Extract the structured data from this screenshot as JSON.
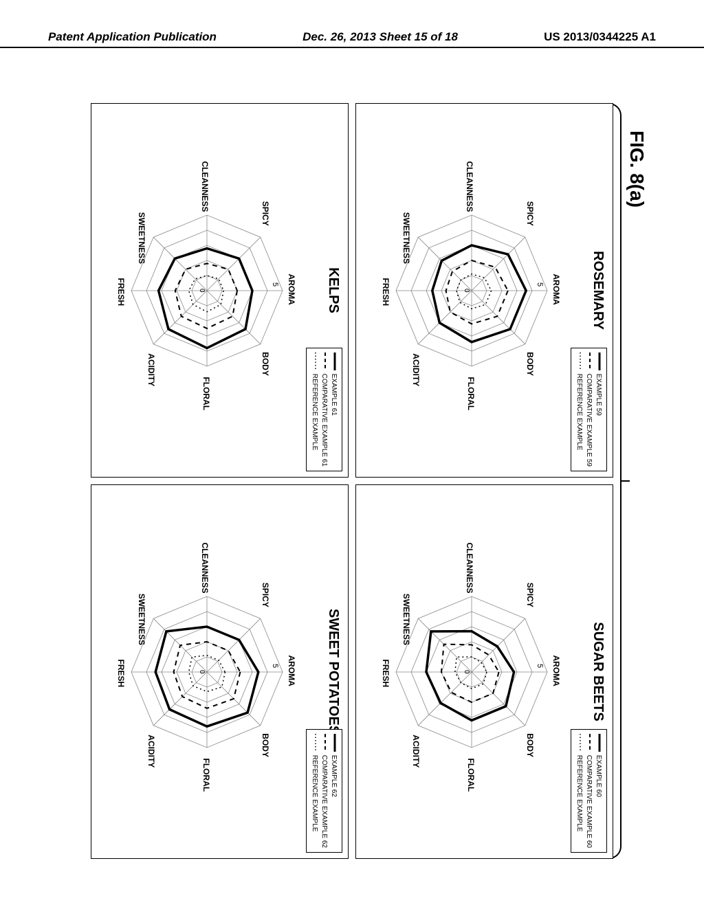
{
  "header": {
    "left": "Patent Application Publication",
    "center": "Dec. 26, 2013  Sheet 15 of 18",
    "right": "US 2013/0344225 A1"
  },
  "figure_title": "FIG. 8(a)",
  "axes": [
    "AROMA",
    "BODY",
    "FLORAL",
    "ACIDITY",
    "FRESH",
    "SWEETNESS",
    "CLEANNESS",
    "SPICY"
  ],
  "scale": {
    "max": 5,
    "tick_label": "5"
  },
  "colors": {
    "background": "#ffffff",
    "grid": "#888888",
    "series_solid": "#000000",
    "series_dash": "#000000",
    "series_dot": "#000000"
  },
  "stroke_widths": {
    "solid": 3.5,
    "dash": 2,
    "dot": 1.5,
    "grid": 0.8
  },
  "panels": [
    {
      "title": "ROSEMARY",
      "legend": [
        {
          "style": "solid",
          "label": "EXAMPLE 59"
        },
        {
          "style": "dash",
          "label": "COMPARATIVE EXAMPLE 59"
        },
        {
          "style": "dot",
          "label": "REFERENCE EXAMPLE"
        }
      ],
      "series": {
        "solid": [
          3.6,
          3.6,
          3.4,
          3.0,
          2.6,
          2.8,
          3.0,
          3.4
        ],
        "dash": [
          2.4,
          2.4,
          2.2,
          2.0,
          1.7,
          1.8,
          2.0,
          2.2
        ],
        "dot": [
          1.3,
          1.3,
          1.2,
          1.1,
          1.0,
          1.0,
          1.1,
          1.2
        ]
      }
    },
    {
      "title": "SUGAR BEETS",
      "legend": [
        {
          "style": "solid",
          "label": "EXAMPLE 60"
        },
        {
          "style": "dash",
          "label": "COMPARATIVE EXAMPLE 60"
        },
        {
          "style": "dot",
          "label": "REFERENCE EXAMPLE"
        }
      ],
      "series": {
        "solid": [
          2.8,
          3.2,
          3.2,
          2.9,
          3.0,
          3.8,
          2.7,
          2.4
        ],
        "dash": [
          1.8,
          2.0,
          2.0,
          1.9,
          2.0,
          2.6,
          1.8,
          1.6
        ],
        "dot": [
          1.0,
          1.1,
          1.1,
          1.0,
          1.1,
          1.4,
          1.0,
          0.9
        ]
      }
    },
    {
      "title": "KELPS",
      "legend": [
        {
          "style": "solid",
          "label": "EXAMPLE 61"
        },
        {
          "style": "dash",
          "label": "COMPARATIVE EXAMPLE 61"
        },
        {
          "style": "dot",
          "label": "REFERENCE EXAMPLE"
        }
      ],
      "series": {
        "solid": [
          3.0,
          3.6,
          3.8,
          3.6,
          3.2,
          3.0,
          2.8,
          3.0
        ],
        "dash": [
          2.0,
          2.4,
          2.5,
          2.4,
          2.1,
          2.0,
          1.8,
          2.0
        ],
        "dot": [
          1.1,
          1.3,
          1.4,
          1.3,
          1.2,
          1.1,
          1.0,
          1.1
        ]
      }
    },
    {
      "title": "SWEET POTATOES",
      "legend": [
        {
          "style": "solid",
          "label": "EXAMPLE 62"
        },
        {
          "style": "dash",
          "label": "COMPARATIVE EXAMPLE 62"
        },
        {
          "style": "dot",
          "label": "REFERENCE EXAMPLE"
        }
      ],
      "series": {
        "solid": [
          3.4,
          3.8,
          3.6,
          3.5,
          3.4,
          3.8,
          3.0,
          3.0
        ],
        "dash": [
          2.2,
          2.5,
          2.4,
          2.3,
          2.2,
          2.5,
          2.0,
          2.0
        ],
        "dot": [
          1.2,
          1.4,
          1.3,
          1.3,
          1.2,
          1.4,
          1.1,
          1.1
        ]
      }
    }
  ]
}
